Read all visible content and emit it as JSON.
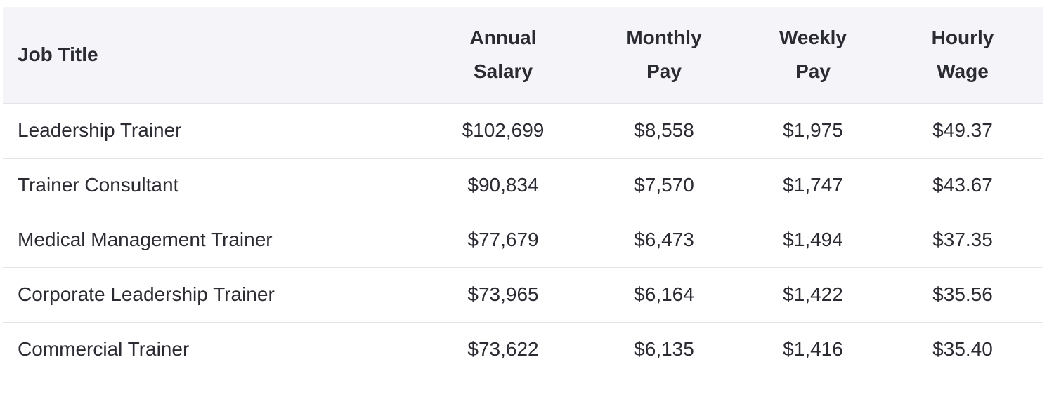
{
  "table": {
    "headers": [
      "Job Title",
      "Annual Salary",
      "Monthly Pay",
      "Weekly Pay",
      "Hourly Wage"
    ],
    "rows": [
      [
        "Leadership Trainer",
        "$102,699",
        "$8,558",
        "$1,975",
        "$49.37"
      ],
      [
        "Trainer Consultant",
        "$90,834",
        "$7,570",
        "$1,747",
        "$43.67"
      ],
      [
        "Medical Management Trainer",
        "$77,679",
        "$6,473",
        "$1,494",
        "$37.35"
      ],
      [
        "Corporate Leadership Trainer",
        "$73,965",
        "$6,164",
        "$1,422",
        "$35.56"
      ],
      [
        "Commercial Trainer",
        "$73,622",
        "$6,135",
        "$1,416",
        "$35.40"
      ]
    ]
  }
}
